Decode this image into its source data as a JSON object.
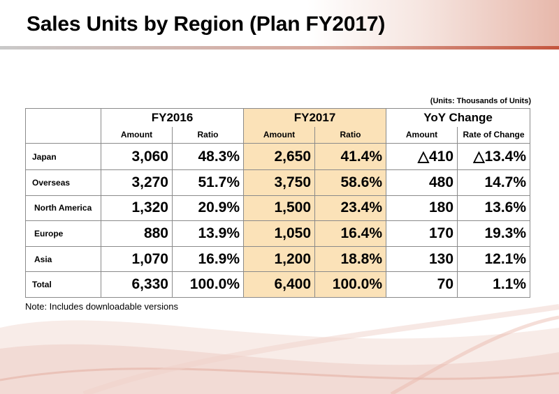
{
  "title": "Sales Units by Region (Plan FY2017)",
  "units_note": "(Units: Thousands of Units)",
  "footnote": "Note: Includes downloadable versions",
  "colors": {
    "highlight": "#fbe2b8",
    "accent_red": "#c4553e",
    "border": "#8a8a8a"
  },
  "table": {
    "groups": [
      "FY2016",
      "FY2017",
      "YoY Change"
    ],
    "subheaders": [
      "Amount",
      "Ratio",
      "Amount",
      "Ratio",
      "Amount",
      "Rate of Change"
    ],
    "rows": [
      {
        "label": "Japan",
        "cells": [
          "3,060",
          "48.3%",
          "2,650",
          "41.4%",
          "△410",
          "△13.4%"
        ]
      },
      {
        "label": "Overseas",
        "cells": [
          "3,270",
          "51.7%",
          "3,750",
          "58.6%",
          "480",
          "14.7%"
        ]
      },
      {
        "label": "North America",
        "cells": [
          "1,320",
          "20.9%",
          "1,500",
          "23.4%",
          "180",
          "13.6%"
        ]
      },
      {
        "label": "Europe",
        "cells": [
          "880",
          "13.9%",
          "1,050",
          "16.4%",
          "170",
          "19.3%"
        ]
      },
      {
        "label": "Asia",
        "cells": [
          "1,070",
          "16.9%",
          "1,200",
          "18.8%",
          "130",
          "12.1%"
        ]
      },
      {
        "label": "Total",
        "cells": [
          "6,330",
          "100.0%",
          "6,400",
          "100.0%",
          "70",
          "1.1%"
        ]
      }
    ]
  }
}
